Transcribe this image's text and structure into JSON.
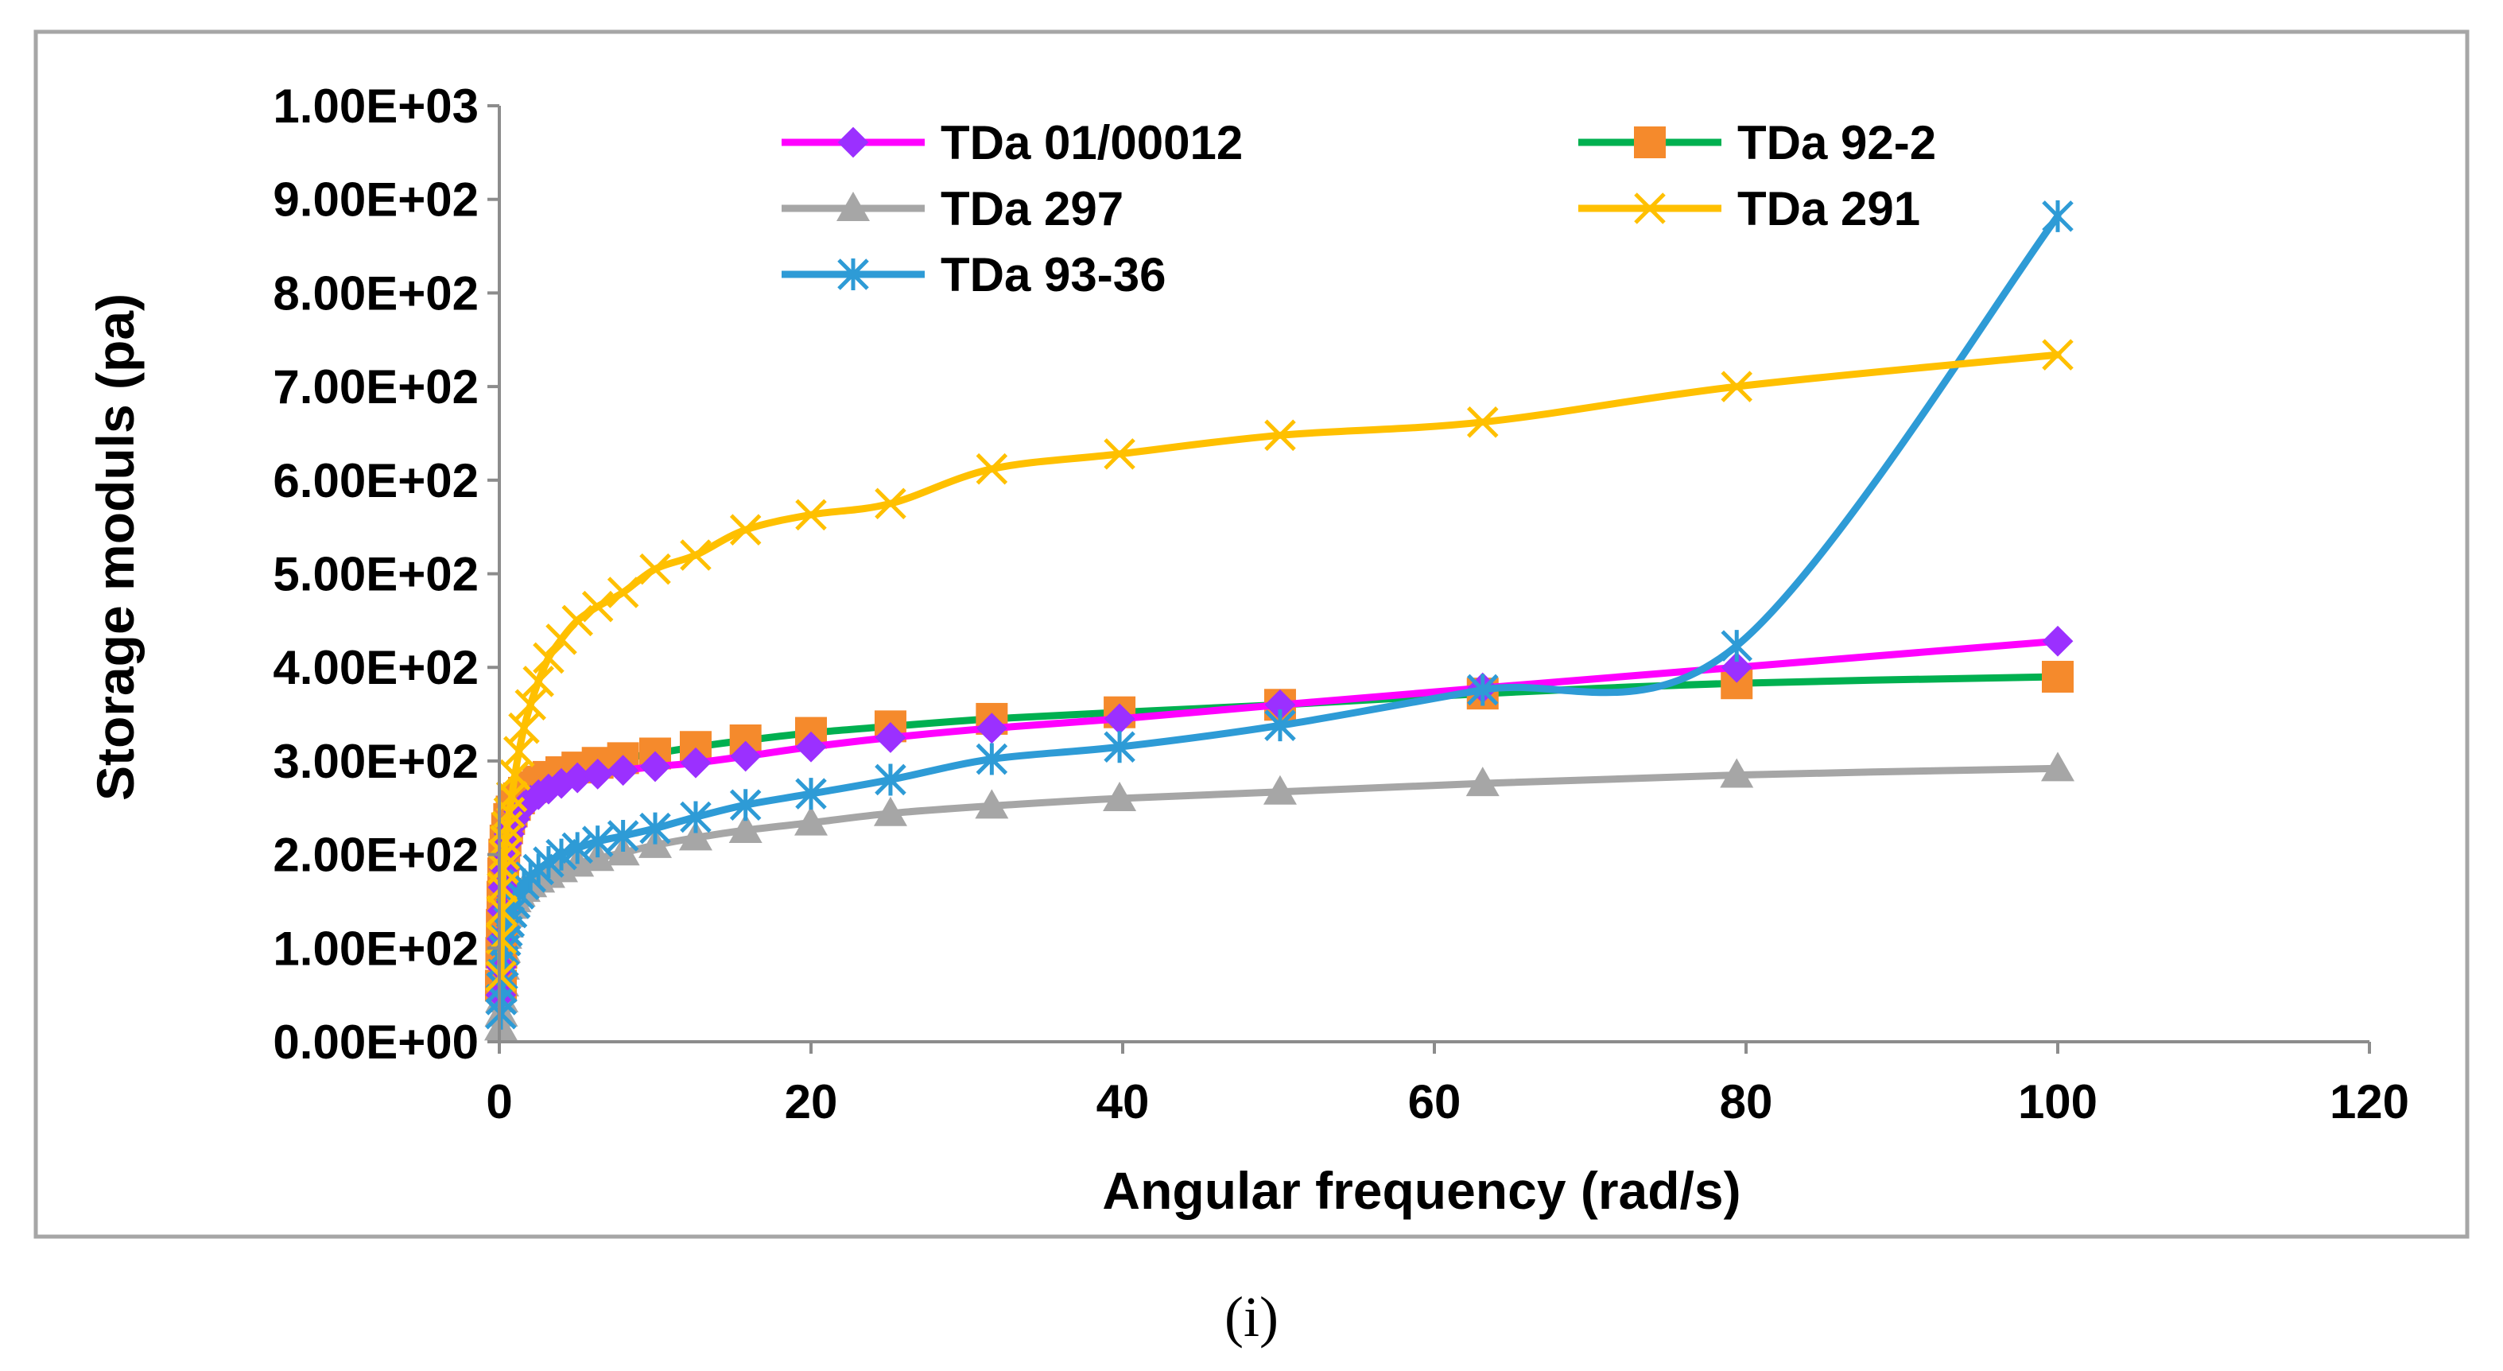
{
  "chart_data": {
    "type": "line",
    "xlabel": "Angular frequency (rad/s)",
    "ylabel": "Storage moduls  (pa)",
    "xlim": [
      0,
      120
    ],
    "ylim": [
      0,
      1000
    ],
    "x_ticks": [
      "0",
      "20",
      "40",
      "60",
      "80",
      "100",
      "120"
    ],
    "y_ticks": [
      "0.00E+00",
      "1.00E+02",
      "2.00E+02",
      "3.00E+02",
      "4.00E+02",
      "5.00E+02",
      "6.00E+02",
      "7.00E+02",
      "8.00E+02",
      "9.00E+02",
      "1.00E+03"
    ],
    "grid": false,
    "legend_position": "top",
    "caption": "(i)",
    "x": [
      0.1,
      0.126,
      0.158,
      0.2,
      0.251,
      0.316,
      0.398,
      0.501,
      0.631,
      0.794,
      1,
      1.26,
      1.58,
      2,
      2.51,
      3.16,
      3.98,
      5.01,
      6.31,
      7.94,
      10,
      12.6,
      15.8,
      20,
      25.1,
      31.6,
      39.8,
      50.1,
      63.1,
      79.4,
      100
    ],
    "series": [
      {
        "name": "TDa 01/00012",
        "color": "#ff00ff",
        "marker": "diamond",
        "marker_color": "#9b30ff",
        "values": [
          50,
          80,
          110,
          140,
          165,
          185,
          200,
          212,
          222,
          230,
          238,
          246,
          252,
          258,
          264,
          270,
          276,
          282,
          286,
          290,
          294,
          298,
          305,
          315,
          325,
          335,
          345,
          360,
          378,
          400,
          428
        ]
      },
      {
        "name": "TDa 92-2",
        "color": "#00b050",
        "marker": "square",
        "marker_color": "#f58a2c",
        "values": [
          60,
          95,
          125,
          155,
          180,
          200,
          215,
          228,
          238,
          246,
          253,
          260,
          266,
          272,
          278,
          283,
          288,
          293,
          298,
          303,
          308,
          315,
          322,
          330,
          337,
          345,
          352,
          360,
          372,
          383,
          390
        ]
      },
      {
        "name": "TDa 297",
        "color": "#a6a6a6",
        "marker": "triangle",
        "marker_color": "#a6a6a6",
        "values": [
          15,
          30,
          45,
          62,
          80,
          98,
          113,
          125,
          136,
          145,
          152,
          158,
          163,
          168,
          173,
          178,
          184,
          190,
          196,
          202,
          210,
          218,
          226,
          234,
          244,
          252,
          260,
          267,
          276,
          285,
          292
        ]
      },
      {
        "name": "TDa 291",
        "color": "#ffc000",
        "marker": "x",
        "marker_color": "#ffc000",
        "values": [
          70,
          110,
          140,
          165,
          185,
          200,
          215,
          230,
          245,
          262,
          285,
          310,
          335,
          360,
          385,
          410,
          430,
          450,
          465,
          480,
          505,
          520,
          547,
          563,
          575,
          612,
          628,
          648,
          662,
          700,
          734
        ]
      },
      {
        "name": "TDa 93-36",
        "color": "#2e9bd6",
        "marker": "asterisk",
        "marker_color": "#2e9bd6",
        "values": [
          30,
          45,
          58,
          72,
          86,
          98,
          108,
          118,
          128,
          138,
          148,
          158,
          168,
          176,
          184,
          192,
          200,
          207,
          214,
          220,
          228,
          240,
          253,
          265,
          280,
          302,
          315,
          338,
          376,
          423,
          882
        ]
      }
    ]
  }
}
